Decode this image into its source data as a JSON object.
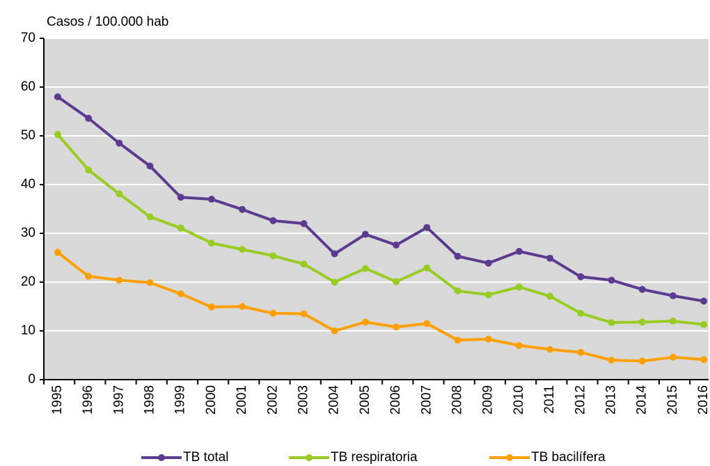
{
  "chart_data": {
    "type": "line",
    "y_axis_label": "Casos / 100.000 hab",
    "categories": [
      "1995",
      "1996",
      "1997",
      "1998",
      "1999",
      "2000",
      "2001",
      "2002",
      "2003",
      "2004",
      "2005",
      "2006",
      "2007",
      "2008",
      "2009",
      "2010",
      "2011",
      "2012",
      "2013",
      "2014",
      "2015",
      "2016"
    ],
    "series": [
      {
        "name": "TB total",
        "color": "#5b3a8f",
        "values": [
          58,
          53.6,
          48.5,
          43.8,
          37.4,
          37,
          34.9,
          32.6,
          32,
          25.8,
          29.8,
          27.6,
          31.2,
          25.3,
          23.9,
          26.3,
          24.9,
          21.1,
          20.4,
          18.5,
          17.2,
          16.1
        ]
      },
      {
        "name": "TB respiratoria",
        "color": "#99cc22",
        "values": [
          50.3,
          43,
          38.1,
          33.4,
          31.1,
          28,
          26.7,
          25.4,
          23.7,
          20,
          22.8,
          20.1,
          22.9,
          18.2,
          17.4,
          19,
          17.1,
          13.6,
          11.7,
          11.8,
          12,
          11.3
        ]
      },
      {
        "name": "TB bacilífera",
        "color": "#ffa000",
        "values": [
          26.1,
          21.2,
          20.4,
          19.9,
          17.6,
          14.9,
          15,
          13.6,
          13.5,
          10,
          11.8,
          10.8,
          11.5,
          8.1,
          8.3,
          7,
          6.2,
          5.6,
          4,
          3.8,
          4.6,
          4.1
        ]
      }
    ],
    "ylim": [
      0,
      70
    ],
    "yticks": [
      0,
      10,
      20,
      30,
      40,
      50,
      60,
      70
    ],
    "grid": true,
    "legend": "bottom"
  }
}
